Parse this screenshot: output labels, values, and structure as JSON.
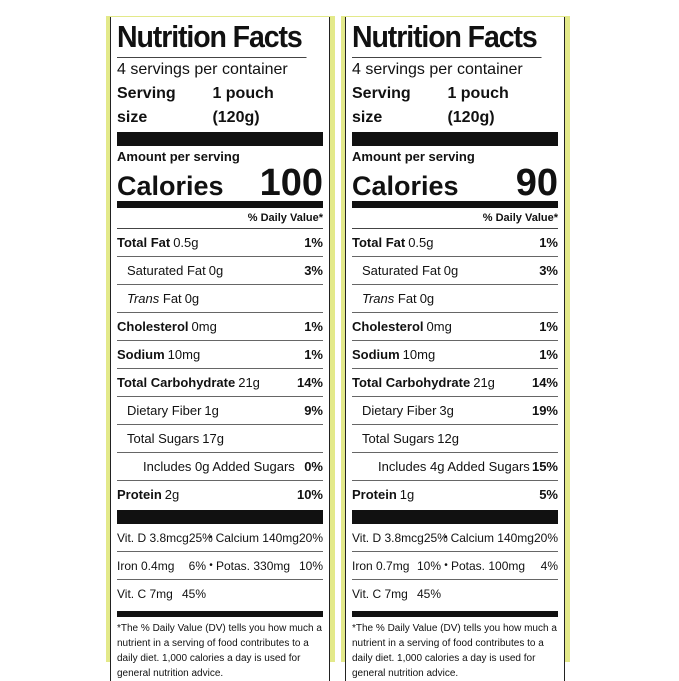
{
  "labels": [
    {
      "title": "Nutrition Facts",
      "servings_per_container": "4 servings per container",
      "serving_size_label": "Serving size",
      "serving_size_value": "1 pouch (120g)",
      "amount_per_serving": "Amount per serving",
      "calories_label": "Calories",
      "calories_value": "100",
      "daily_value_header": "% Daily Value*",
      "total_fat": {
        "name": "Total Fat",
        "amount": "0.5g",
        "dv": "1%"
      },
      "saturated_fat": {
        "name": "Saturated Fat",
        "amount": "0g",
        "dv": "3%"
      },
      "trans_fat": {
        "prefix": "Trans",
        "name": "Fat",
        "amount": "0g"
      },
      "cholesterol": {
        "name": "Cholesterol",
        "amount": "0mg",
        "dv": "1%"
      },
      "sodium": {
        "name": "Sodium",
        "amount": "10mg",
        "dv": "1%"
      },
      "total_carbohydrate": {
        "name": "Total Carbohydrate",
        "amount": "21g",
        "dv": "14%"
      },
      "dietary_fiber": {
        "name": "Dietary Fiber",
        "amount": "1g",
        "dv": "9%"
      },
      "total_sugars": {
        "name": "Total Sugars",
        "amount": "17g"
      },
      "added_sugars": {
        "name": "Includes 0g Added Sugars",
        "dv": "0%"
      },
      "protein": {
        "name": "Protein",
        "amount": "2g",
        "dv": "10%"
      },
      "vitamins": [
        {
          "left_name": "Vit. D 3.8mcg",
          "left_dv": "25%",
          "right_name": "Calcium 140mg",
          "right_dv": "20%"
        },
        {
          "left_name": "Iron 0.4mg",
          "left_dv": "6%",
          "right_name": "Potas. 330mg",
          "right_dv": "10%"
        },
        {
          "left_name": "Vit. C 7mg",
          "left_dv": "45%"
        }
      ],
      "bullet": "•",
      "footnote": "*The % Daily Value (DV) tells you how much a nutrient in a serving of food contributes to a daily diet. 1,000 calories a day is used for general nutrition advice."
    },
    {
      "title": "Nutrition Facts",
      "servings_per_container": "4 servings per container",
      "serving_size_label": "Serving size",
      "serving_size_value": "1 pouch (120g)",
      "amount_per_serving": "Amount per serving",
      "calories_label": "Calories",
      "calories_value": "90",
      "daily_value_header": "% Daily Value*",
      "total_fat": {
        "name": "Total Fat",
        "amount": "0.5g",
        "dv": "1%"
      },
      "saturated_fat": {
        "name": "Saturated Fat",
        "amount": "0g",
        "dv": "3%"
      },
      "trans_fat": {
        "prefix": "Trans",
        "name": "Fat",
        "amount": "0g"
      },
      "cholesterol": {
        "name": "Cholesterol",
        "amount": "0mg",
        "dv": "1%"
      },
      "sodium": {
        "name": "Sodium",
        "amount": "10mg",
        "dv": "1%"
      },
      "total_carbohydrate": {
        "name": "Total Carbohydrate",
        "amount": "21g",
        "dv": "14%"
      },
      "dietary_fiber": {
        "name": "Dietary Fiber",
        "amount": "3g",
        "dv": "19%"
      },
      "total_sugars": {
        "name": "Total Sugars",
        "amount": "12g"
      },
      "added_sugars": {
        "name": "Includes 4g Added Sugars",
        "dv": "15%"
      },
      "protein": {
        "name": "Protein",
        "amount": "1g",
        "dv": "5%"
      },
      "vitamins": [
        {
          "left_name": "Vit. D 3.8mcg",
          "left_dv": "25%",
          "right_name": "Calcium 140mg",
          "right_dv": "20%"
        },
        {
          "left_name": "Iron 0.7mg",
          "left_dv": "10%",
          "right_name": "Potas. 100mg",
          "right_dv": "4%"
        },
        {
          "left_name": "Vit. C 7mg",
          "left_dv": "45%"
        }
      ],
      "bullet": "•",
      "footnote": "*The % Daily Value (DV) tells you how much a nutrient in a serving of food contributes to a daily diet. 1,000 calories a day is used for general nutrition advice."
    }
  ],
  "colors": {
    "pouch_band": "#e3e98a",
    "label_background": "#ffffff",
    "ink": "#111111"
  }
}
